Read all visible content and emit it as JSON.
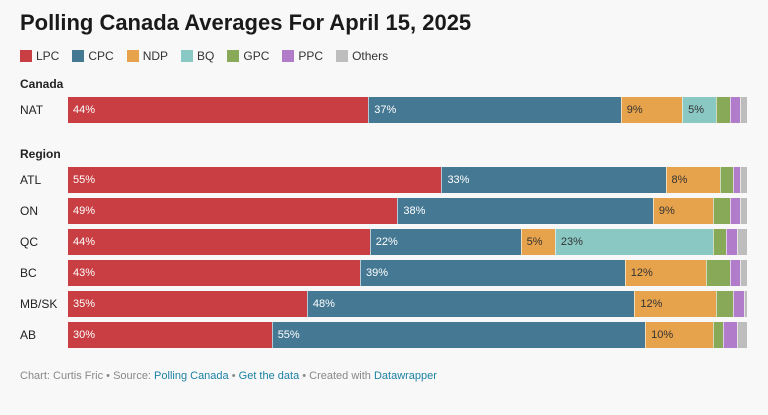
{
  "title": "Polling Canada Averages For April 15, 2025",
  "footer": {
    "prefix": "Chart: Curtis Fric • Source: ",
    "source": "Polling Canada",
    "sep1": " • ",
    "get_data": "Get the data",
    "sep2": " • Created with ",
    "tool": "Datawrapper"
  },
  "chart_data": {
    "type": "bar",
    "orientation": "horizontal",
    "stacked": true,
    "title": "Polling Canada Averages For April 15, 2025",
    "legend_position": "top-left",
    "series_order": [
      "LPC",
      "CPC",
      "NDP",
      "BQ",
      "GPC",
      "PPC",
      "Others"
    ],
    "colors": {
      "LPC": "#c83e42",
      "CPC": "#457893",
      "NDP": "#e7a24c",
      "BQ": "#8ac8c3",
      "GPC": "#88a957",
      "PPC": "#b17dcb",
      "Others": "#bdbdbd"
    },
    "label_colors": {
      "LPC": "#ffffff",
      "CPC": "#ffffff",
      "NDP": "#333333",
      "BQ": "#333333"
    },
    "groups": [
      {
        "name": "Canada",
        "rows": [
          {
            "label": "NAT",
            "values": {
              "LPC": 44,
              "CPC": 37,
              "NDP": 9,
              "BQ": 5,
              "GPC": 2,
              "PPC": 1.5,
              "Others": 1
            }
          }
        ]
      },
      {
        "name": "Region",
        "rows": [
          {
            "label": "ATL",
            "values": {
              "LPC": 55,
              "CPC": 33,
              "NDP": 8,
              "BQ": 0,
              "GPC": 2,
              "PPC": 1,
              "Others": 1
            }
          },
          {
            "label": "ON",
            "values": {
              "LPC": 49,
              "CPC": 38,
              "NDP": 9,
              "BQ": 0,
              "GPC": 2.5,
              "PPC": 1.5,
              "Others": 1
            }
          },
          {
            "label": "QC",
            "values": {
              "LPC": 44,
              "CPC": 22,
              "NDP": 5,
              "BQ": 23,
              "GPC": 2,
              "PPC": 1.5,
              "Others": 1.5
            }
          },
          {
            "label": "BC",
            "values": {
              "LPC": 43,
              "CPC": 39,
              "NDP": 12,
              "BQ": 0,
              "GPC": 3.5,
              "PPC": 1.5,
              "Others": 1
            }
          },
          {
            "label": "MB/SK",
            "values": {
              "LPC": 35,
              "CPC": 48,
              "NDP": 12,
              "BQ": 0,
              "GPC": 2.5,
              "PPC": 1.5,
              "Others": 0.5
            }
          },
          {
            "label": "AB",
            "values": {
              "LPC": 30,
              "CPC": 55,
              "NDP": 10,
              "BQ": 0,
              "GPC": 1.5,
              "PPC": 2,
              "Others": 1.5
            }
          }
        ]
      }
    ],
    "label_min_value": 5
  }
}
